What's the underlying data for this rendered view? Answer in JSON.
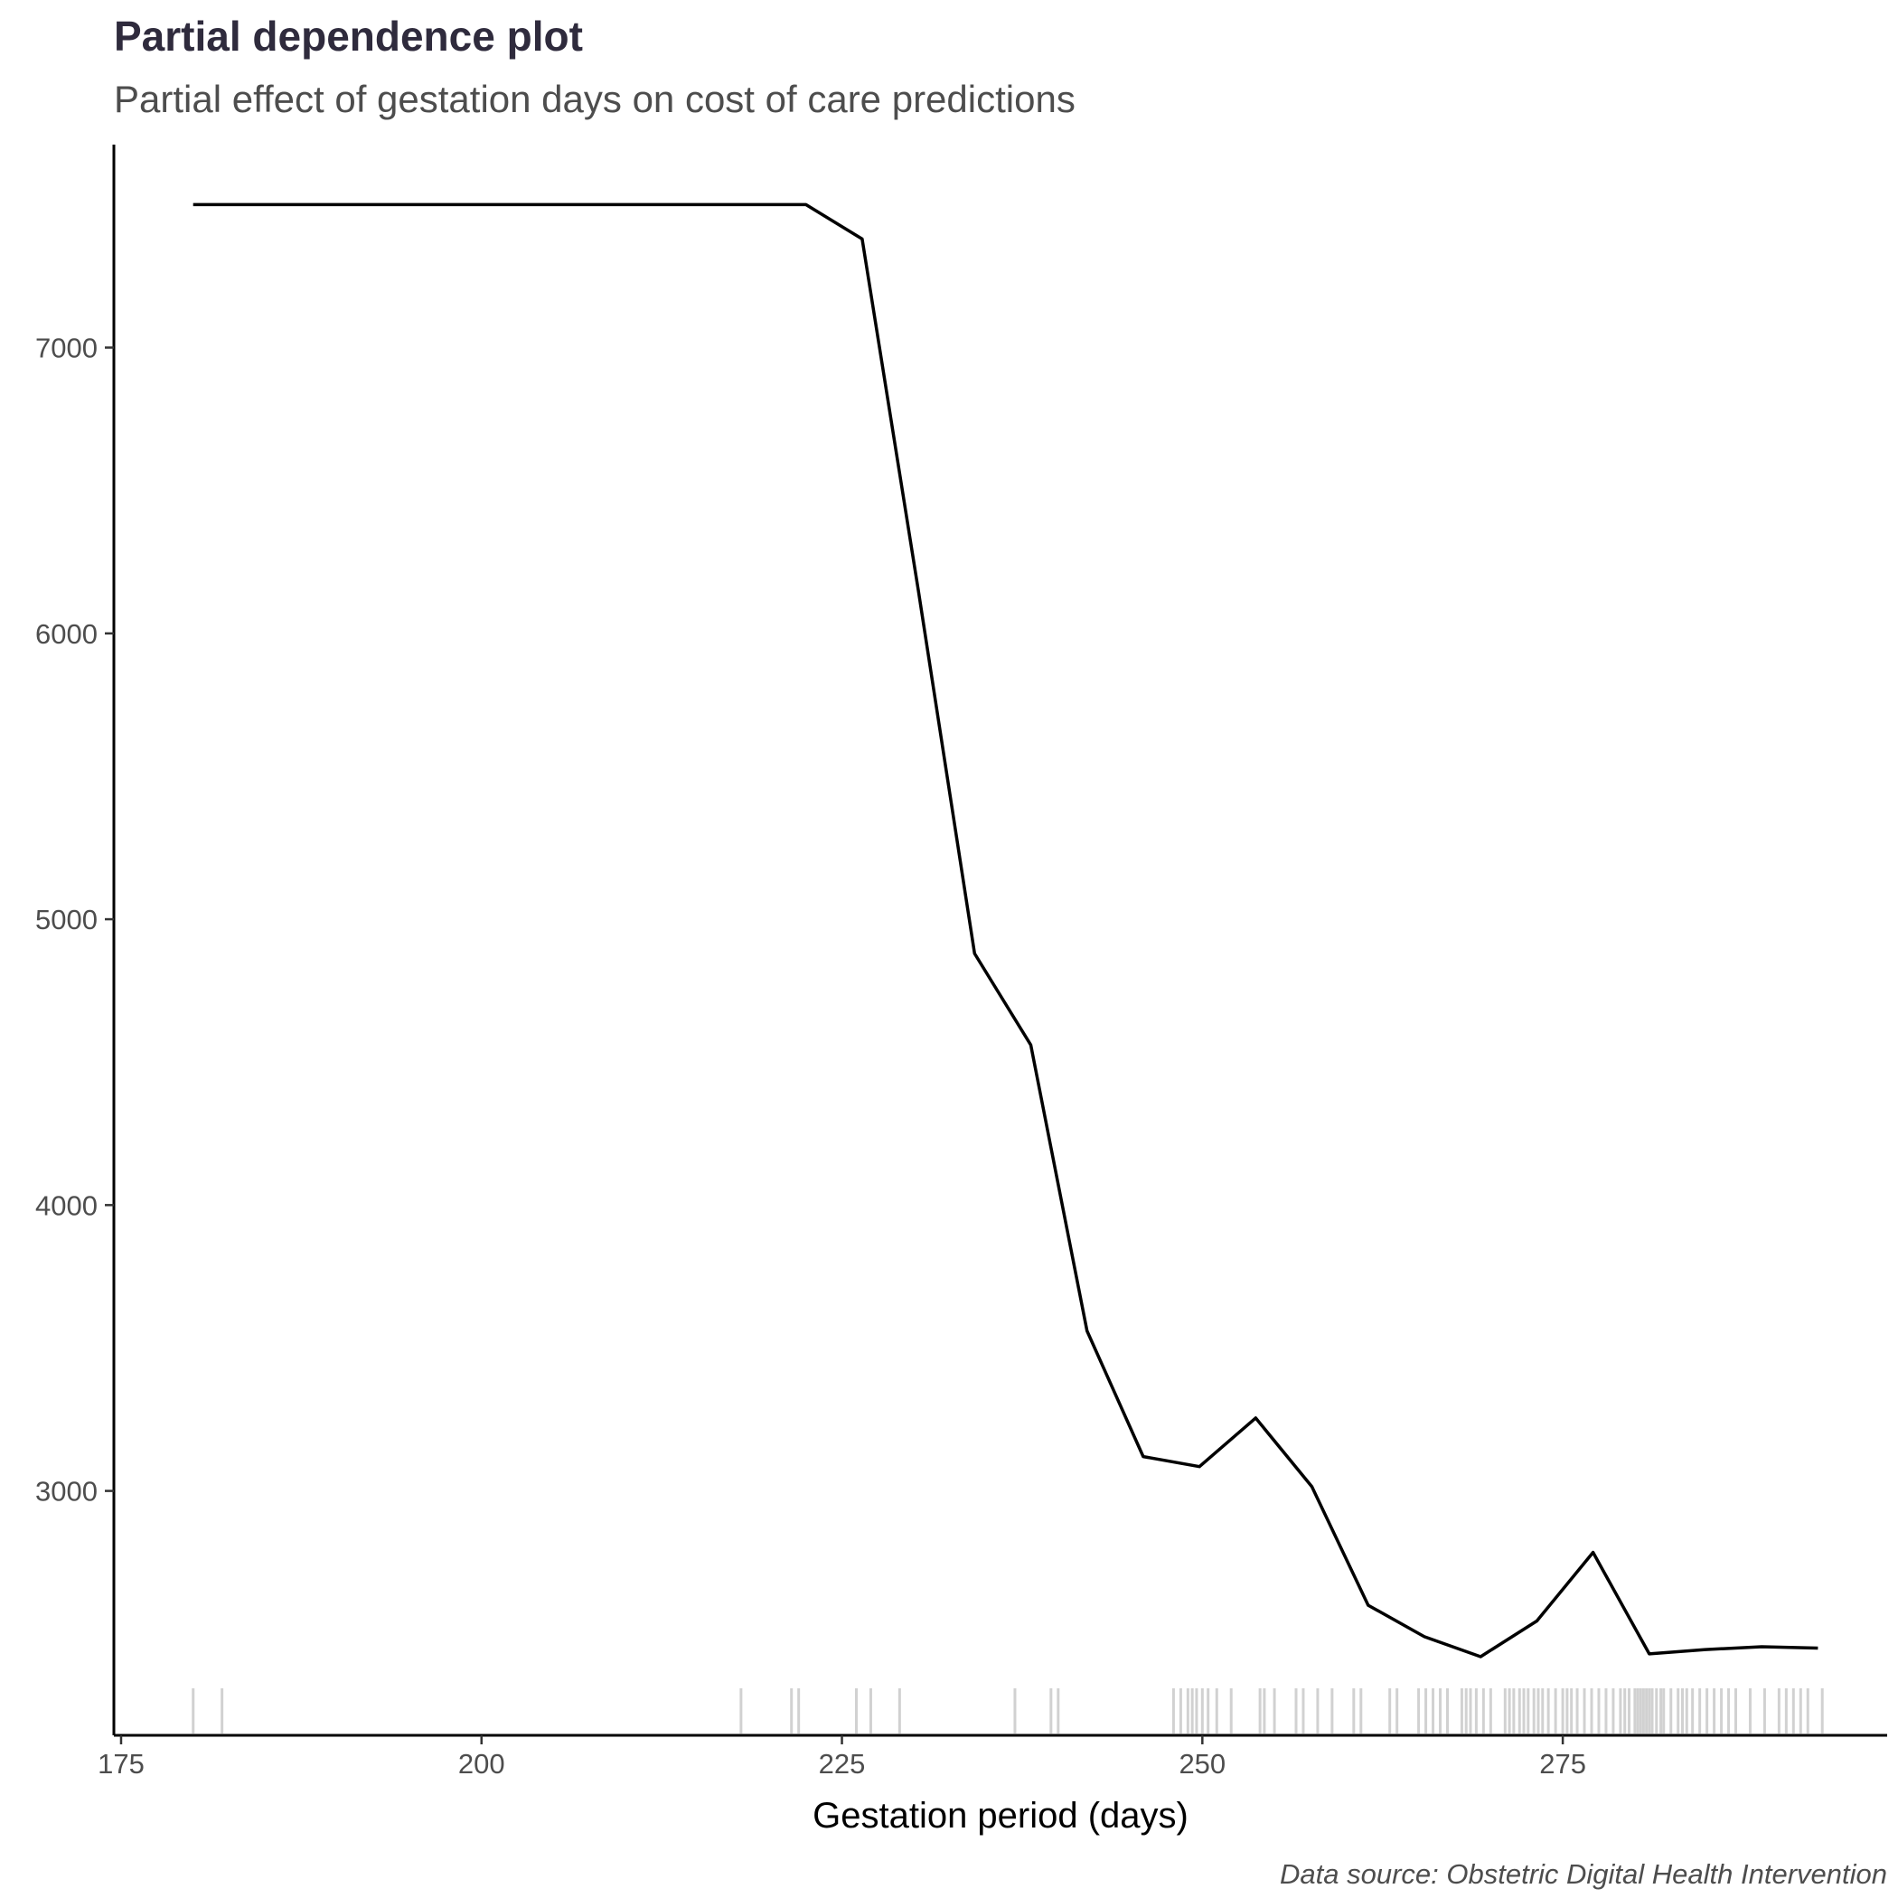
{
  "chart_data": {
    "type": "line",
    "title": "Partial dependence plot",
    "subtitle": "Partial effect of gestation days on cost of care predictions",
    "xlabel": "Gestation period (days)",
    "ylabel": "",
    "caption": "Data source: Obstetric Digital Health Intervention",
    "xlim": [
      174.5,
      297.5
    ],
    "ylim": [
      2145,
      7710
    ],
    "x_ticks": [
      175,
      200,
      225,
      250,
      275
    ],
    "y_ticks": [
      3000,
      4000,
      5000,
      6000,
      7000
    ],
    "grid": false,
    "legend": "none",
    "line_color": "#000000",
    "series": [
      {
        "x": [
          180,
          184,
          188,
          192,
          196,
          200,
          204,
          208,
          212,
          216,
          220,
          222.5,
          226.4,
          230.3,
          234.2,
          238.1,
          242,
          245.9,
          249.8,
          253.7,
          257.6,
          261.5,
          265.4,
          269.3,
          273.2,
          277.1,
          281,
          284.9,
          288.8,
          292.7
        ],
        "y": [
          7500,
          7500,
          7500,
          7500,
          7500,
          7500,
          7500,
          7500,
          7500,
          7500,
          7500,
          7500,
          7380,
          6150,
          4880,
          4560,
          3560,
          3120,
          3085,
          3255,
          3015,
          2600,
          2490,
          2420,
          2545,
          2785,
          2430,
          2445,
          2455,
          2450
        ]
      }
    ],
    "rug": [
      180,
      182,
      218,
      221.5,
      222,
      226,
      227,
      229,
      237,
      239.5,
      240,
      248,
      248.5,
      249,
      249.3,
      249.6,
      250,
      250.4,
      251,
      252,
      254,
      254.3,
      255,
      256.5,
      257,
      258,
      259,
      260.5,
      261,
      263,
      263.5,
      265,
      265.5,
      266,
      266.5,
      267,
      268,
      268.3,
      268.6,
      269,
      269.5,
      270,
      271,
      271.3,
      271.6,
      272,
      272.3,
      272.6,
      273,
      273.3,
      273.6,
      274,
      274.5,
      275,
      275.3,
      275.6,
      276,
      276.5,
      277,
      277.5,
      278,
      278.5,
      279,
      279.3,
      279.6,
      280,
      280.2,
      280.4,
      280.6,
      280.8,
      281,
      281.2,
      281.5,
      281.8,
      282,
      282.5,
      283,
      283.3,
      283.6,
      284,
      284.5,
      285,
      285.5,
      286,
      286.5,
      287,
      288,
      289,
      290,
      290.5,
      291,
      291.5,
      292,
      293
    ]
  }
}
